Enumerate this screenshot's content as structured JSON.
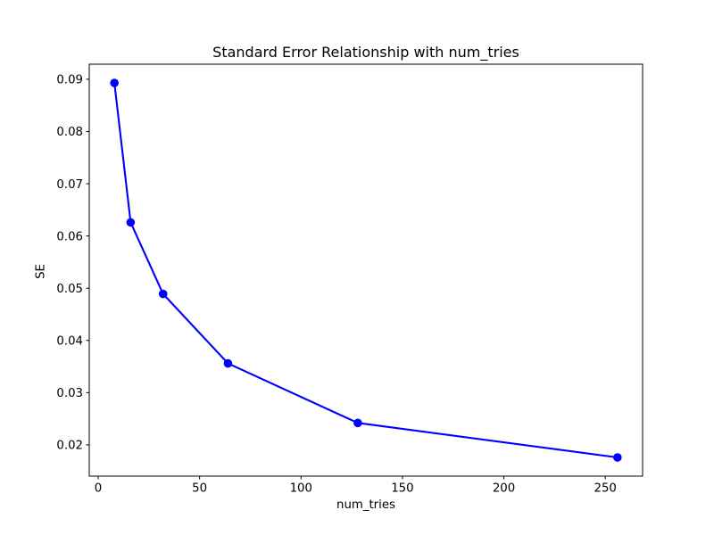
{
  "figure": {
    "background": "#ffffff",
    "axes_background": "#ffffff",
    "spine_color": "#000000",
    "text_color": "#000000"
  },
  "chart_data": {
    "type": "line",
    "title": "Standard Error Relationship with num_tries",
    "xlabel": "num_tries",
    "ylabel": "SE",
    "x": [
      8,
      16,
      32,
      64,
      128,
      256
    ],
    "y": [
      0.0893,
      0.0626,
      0.0489,
      0.0356,
      0.0242,
      0.0176
    ],
    "series": [
      {
        "name": "SE",
        "color": "#0000ff",
        "marker": "circle",
        "line_width": 2.1,
        "marker_radius": 4.8
      }
    ],
    "xlim": [
      -4.4,
      268.4
    ],
    "ylim": [
      0.014015,
      0.092885
    ],
    "x_ticks": [
      0,
      50,
      100,
      150,
      200,
      250
    ],
    "x_tick_labels": [
      "0",
      "50",
      "100",
      "150",
      "200",
      "250"
    ],
    "y_ticks": [
      0.02,
      0.03,
      0.04,
      0.05,
      0.06,
      0.07,
      0.08,
      0.09
    ],
    "y_tick_labels": [
      "0.02",
      "0.03",
      "0.04",
      "0.05",
      "0.06",
      "0.07",
      "0.08",
      "0.09"
    ],
    "grid": false,
    "legend": null
  }
}
